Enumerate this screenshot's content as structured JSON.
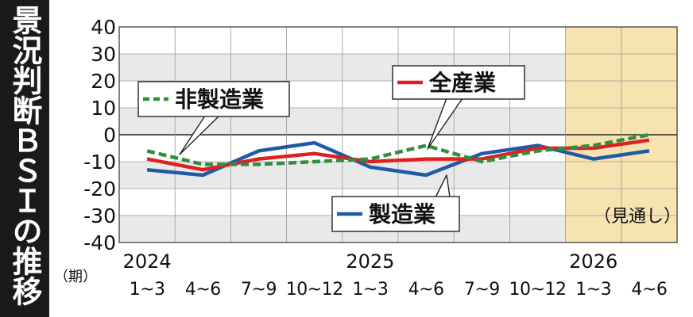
{
  "title": "景況判断ＢＳＩの推移",
  "colors": {
    "all_industries": "#e02020",
    "manufacturing": "#1f5aa6",
    "non_manufacturing": "#2f8f3a",
    "forecast_shade": "#f6e3b0",
    "band_shade": "#e9e9e9"
  },
  "forecast_label": "（見通し）",
  "period_label": "（期）",
  "chart_data": {
    "type": "line",
    "ylim": [
      -40,
      40
    ],
    "yticks": [
      "40",
      "30",
      "20",
      "10",
      "0",
      "-10",
      "-20",
      "-30",
      "-40"
    ],
    "years": [
      "2024",
      "2025",
      "2026"
    ],
    "categories": [
      "1~3",
      "4~6",
      "7~9",
      "10~12",
      "1~3",
      "4~6",
      "7~9",
      "10~12",
      "1~3",
      "4~6"
    ],
    "forecast_from_index": 8,
    "series": [
      {
        "key": "all_industries",
        "name": "全産業",
        "style": "solid",
        "values": [
          -9,
          -13,
          -9,
          -7,
          -10,
          -9,
          -9,
          -5,
          -5,
          -2
        ]
      },
      {
        "key": "manufacturing",
        "name": "製造業",
        "style": "solid",
        "values": [
          -13,
          -15,
          -6,
          -3,
          -12,
          -15,
          -7,
          -4,
          -9,
          -6
        ]
      },
      {
        "key": "non_manufacturing",
        "name": "非製造業",
        "style": "dashed",
        "values": [
          -6,
          -11,
          -11,
          -10,
          -9,
          -4,
          -10,
          -6,
          -4,
          0
        ]
      }
    ]
  }
}
